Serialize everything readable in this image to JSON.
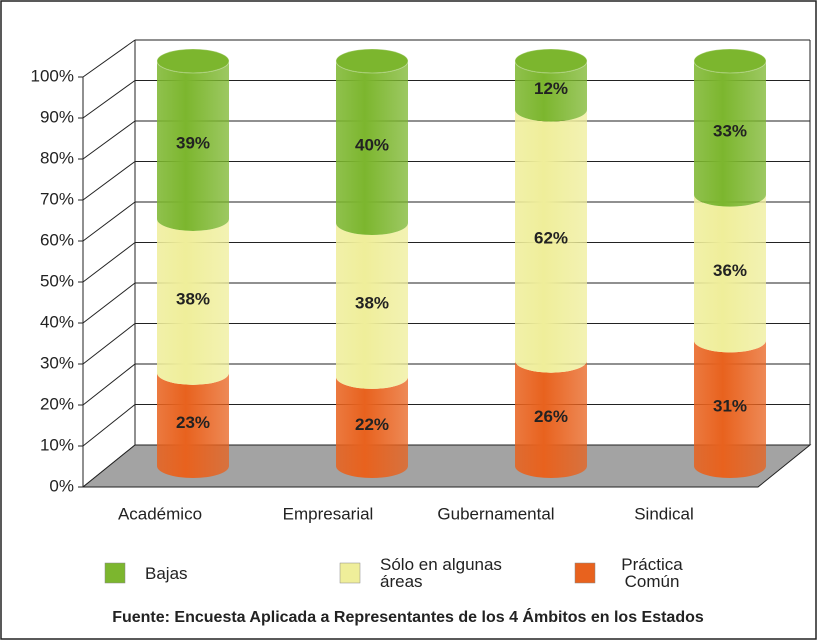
{
  "chart_data": {
    "type": "cylinder-stacked",
    "categories": [
      "Académico",
      "Empresarial",
      "Gubernamental",
      "Sindical"
    ],
    "series": [
      {
        "name": "Práctica Común",
        "color": "#e8621e",
        "values": [
          23,
          22,
          26,
          31
        ],
        "value_labels": [
          "23%",
          "22%",
          "26%",
          "31%"
        ]
      },
      {
        "name": "Sólo en algunas áreas",
        "color": "#efee9a",
        "values": [
          38,
          38,
          62,
          36
        ],
        "value_labels": [
          "38%",
          "38%",
          "62%",
          "36%"
        ]
      },
      {
        "name": "Bajas",
        "color": "#7cb62e",
        "values": [
          39,
          40,
          12,
          33
        ],
        "value_labels": [
          "39%",
          "40%",
          "12%",
          "33%"
        ]
      }
    ],
    "ylim": [
      0,
      100
    ],
    "yticks": [
      {
        "value": 0,
        "label": "0%"
      },
      {
        "value": 10,
        "label": "10%"
      },
      {
        "value": 20,
        "label": "20%"
      },
      {
        "value": 30,
        "label": "30%"
      },
      {
        "value": 40,
        "label": "40%"
      },
      {
        "value": 50,
        "label": "50%"
      },
      {
        "value": 60,
        "label": "60%"
      },
      {
        "value": 70,
        "label": "70%"
      },
      {
        "value": 80,
        "label": "80%"
      },
      {
        "value": 90,
        "label": "90%"
      },
      {
        "value": 100,
        "label": "100%"
      }
    ],
    "grid": true,
    "source": "Fuente: Encuesta Aplicada a Representantes de los 4 Ámbitos en los Estados"
  }
}
